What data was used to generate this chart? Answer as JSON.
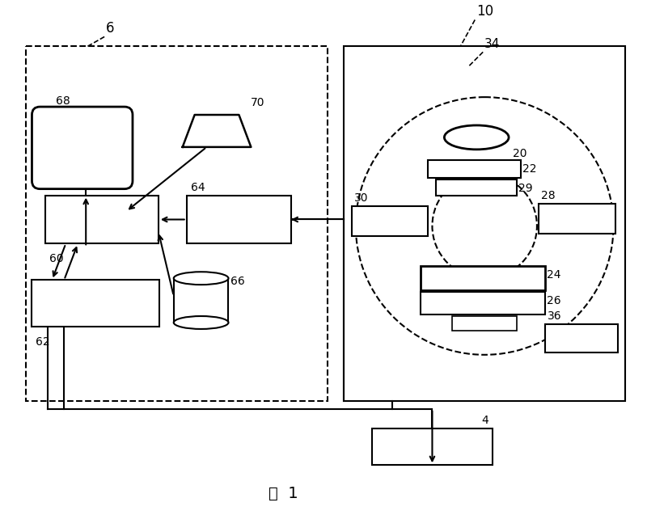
{
  "bg_color": "#ffffff",
  "lc": "#000000",
  "label_6": "6",
  "label_10": "10",
  "label_34": "34",
  "label_20": "20",
  "label_22": "22",
  "label_24": "24",
  "label_26": "26",
  "label_28": "28",
  "label_29": "29",
  "label_30": "30",
  "label_36": "36",
  "label_4": "4",
  "label_60": "60",
  "label_62": "62",
  "label_64": "64",
  "label_66": "66",
  "label_68": "68",
  "label_70": "70",
  "fig_label": "图  1"
}
